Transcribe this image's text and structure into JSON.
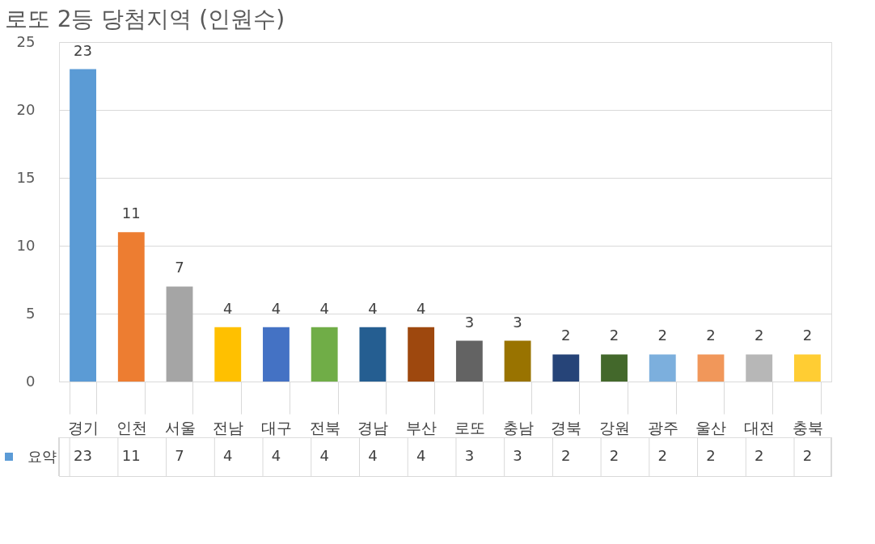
{
  "chart_data": {
    "type": "bar",
    "title": "로또 2등 당첨지역 (인원수)",
    "categories": [
      "경기",
      "인천",
      "서울",
      "전남",
      "대구",
      "전북",
      "경남",
      "부산",
      "로또",
      "충남",
      "경북",
      "강원",
      "광주",
      "울산",
      "대전",
      "충북"
    ],
    "series": [
      {
        "name": "요약",
        "color": "#5b9bd5",
        "values": [
          23,
          11,
          7,
          4,
          4,
          4,
          4,
          4,
          3,
          3,
          2,
          2,
          2,
          2,
          2,
          2
        ],
        "value_labels": [
          "23",
          "11",
          "7",
          "4",
          "4",
          "4",
          "4",
          "4",
          "3",
          "3",
          "2",
          "2",
          "2",
          "2",
          "2",
          "2"
        ],
        "colors": [
          "#5b9bd5",
          "#ed7d31",
          "#a5a5a5",
          "#ffc000",
          "#4472c4",
          "#70ad47",
          "#255e91",
          "#9e480e",
          "#636363",
          "#997300",
          "#264478",
          "#43682b",
          "#7cafdd",
          "#f1975a",
          "#b7b7b7",
          "#ffcd33"
        ]
      }
    ],
    "annotations": [
      "23",
      "11",
      "7",
      "4",
      "4",
      "4",
      "4",
      "4",
      "3",
      "3",
      "2",
      "2",
      "2",
      "2",
      "2",
      "2"
    ],
    "ylim": [
      0,
      25
    ],
    "yticks": [
      0,
      5,
      10,
      15,
      20,
      25
    ],
    "grid": "y",
    "data_labels": true,
    "legend": "bottom"
  }
}
